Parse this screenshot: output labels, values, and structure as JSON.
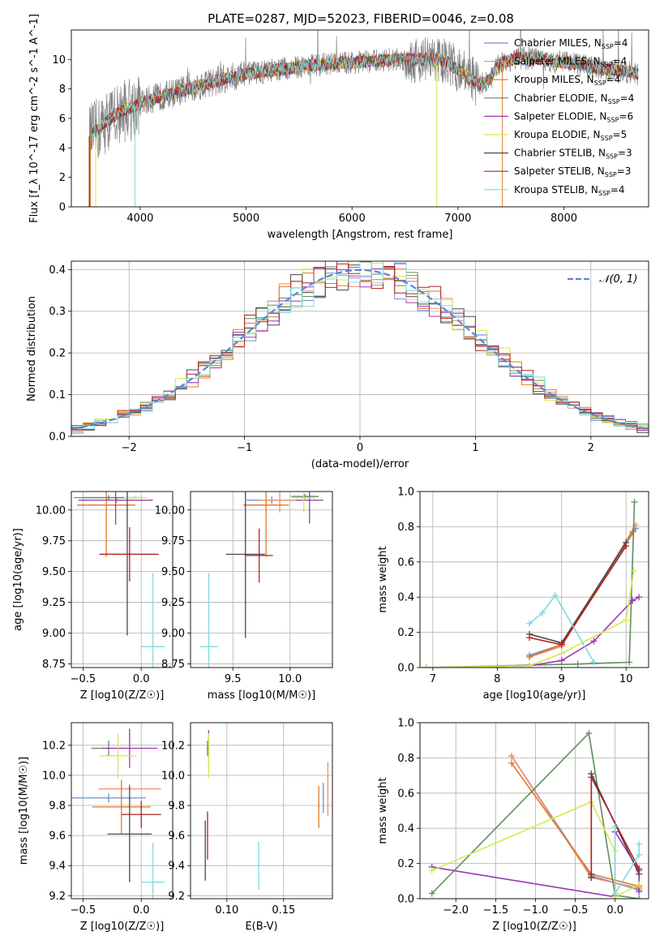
{
  "figure_title": "PLATE=0287, MJD=52023, FIBERID=0046, z=0.08",
  "colors": {
    "grid": "#b0b0b0",
    "gauss": "#5b86d6",
    "series": [
      "#6b8fd6",
      "#f28e6e",
      "#e0791f",
      "#5e8d5e",
      "#9e36b5",
      "#d6e84e",
      "#4a4a4a",
      "#b51f1f",
      "#7fd9dc"
    ]
  },
  "series_names": [
    "Chabrier MILES, N_SSP=4",
    "Salpeter MILES, N_SSP=4",
    "Kroupa MILES, N_SSP=4",
    "Chabrier ELODIE, N_SSP=4",
    "Salpeter ELODIE, N_SSP=6",
    "Kroupa ELODIE, N_SSP=5",
    "Chabrier STELIB, N_SSP=3",
    "Salpeter STELIB, N_SSP=3",
    "Kroupa STELIB, N_SSP=4"
  ],
  "chart_data": [
    {
      "id": "spectrum",
      "type": "line",
      "title": "PLATE=0287, MJD=52023, FIBERID=0046, z=0.08",
      "xlabel": "wavelength [Angstrom, rest frame]",
      "ylabel": "Flux [f_λ 10^-17 erg cm^-2 s^-1 A^-1]",
      "xlim": [
        3350,
        8800
      ],
      "ylim": [
        0,
        12
      ],
      "xticks": [
        4000,
        5000,
        6000,
        7000,
        8000
      ],
      "yticks": [
        0,
        2,
        4,
        6,
        8,
        10
      ],
      "grid": false,
      "legend_placement": "right",
      "continuum": {
        "x": [
          3520,
          3600,
          3700,
          3800,
          3900,
          4000,
          4100,
          4200,
          4400,
          4600,
          4800,
          5000,
          5200,
          5400,
          5600,
          5800,
          6000,
          6200,
          6400,
          6600,
          6800,
          6900,
          7000,
          7100,
          7200,
          7300,
          7400,
          7600,
          7800,
          8000,
          8200,
          8400,
          8600,
          8700
        ],
        "y": [
          4.8,
          5.2,
          5.9,
          6.4,
          6.7,
          7.0,
          7.3,
          7.5,
          7.9,
          8.3,
          8.7,
          9.0,
          9.2,
          9.4,
          9.6,
          9.7,
          9.8,
          9.9,
          10.0,
          10.0,
          10.0,
          9.8,
          9.3,
          8.8,
          8.3,
          8.6,
          9.8,
          10.1,
          10.0,
          9.8,
          9.6,
          9.3,
          9.2,
          9.0
        ]
      }
    },
    {
      "id": "residuals",
      "type": "line",
      "xlabel": "(data-model)/error",
      "ylabel": "Normed distribution",
      "xlim": [
        -2.5,
        2.5
      ],
      "ylim": [
        0,
        0.42
      ],
      "xticks": [
        -2,
        -1,
        0,
        1,
        2
      ],
      "yticks": [
        0.0,
        0.1,
        0.2,
        0.3,
        0.4
      ],
      "grid": true,
      "legend_entry": "𝒩(0, 1)",
      "legend_placement": "top-right",
      "bin_width": 0.1,
      "bin_start": -2.5
    },
    {
      "id": "age_vs_Z",
      "type": "scatter",
      "xlabel": "Z [log10(Z/Z☉)]",
      "ylabel": "age [log10(age/yr)]",
      "xlim": [
        -0.6,
        0.27
      ],
      "ylim": [
        8.72,
        10.15
      ],
      "xticks": [
        -0.5,
        0.0
      ],
      "yticks": [
        8.75,
        9.0,
        9.25,
        9.5,
        9.75,
        10.0
      ],
      "grid": true,
      "points": [
        {
          "x": -0.28,
          "y": 10.1,
          "xerr": 0.3,
          "yerr": 0.02
        },
        {
          "x": -0.21,
          "y": 10.08,
          "xerr": 0.3,
          "yerr": 0.02
        },
        {
          "x": -0.3,
          "y": 10.04,
          "xerr": 0.25,
          "yerr": 0.42
        },
        {
          "x": -0.28,
          "y": 10.1,
          "xerr": 0.22,
          "yerr": 0.02
        },
        {
          "x": -0.22,
          "y": 10.08,
          "xerr": 0.32,
          "yerr": 0.2
        },
        {
          "x": -0.05,
          "y": 10.1,
          "xerr": 0.1,
          "yerr": 0.02
        },
        {
          "x": -0.12,
          "y": 9.64,
          "xerr": 0.24,
          "yerr": 0.66
        },
        {
          "x": -0.1,
          "y": 9.64,
          "xerr": 0.25,
          "yerr": 0.22
        },
        {
          "x": 0.1,
          "y": 8.89,
          "xerr": 0.1,
          "yerr": 0.6
        }
      ]
    },
    {
      "id": "age_vs_mass",
      "type": "scatter",
      "xlabel": "mass [log10(M/M☉)]",
      "ylabel": "",
      "xlim": [
        9.13,
        10.37
      ],
      "ylim": [
        8.72,
        10.15
      ],
      "xticks": [
        9.5,
        10.0
      ],
      "yticks": [
        8.75,
        9.0,
        9.25,
        9.5,
        9.75,
        10.0
      ],
      "grid": true,
      "points": [
        {
          "x": 9.84,
          "y": 10.08,
          "xerr": 0.22,
          "yerr": 0.03
        },
        {
          "x": 9.91,
          "y": 10.08,
          "xerr": 0.18,
          "yerr": 0.1
        },
        {
          "x": 9.79,
          "y": 10.04,
          "xerr": 0.2,
          "yerr": 0.42
        },
        {
          "x": 10.13,
          "y": 10.11,
          "xerr": 0.12,
          "yerr": 0.02
        },
        {
          "x": 10.17,
          "y": 10.08,
          "xerr": 0.12,
          "yerr": 0.19
        },
        {
          "x": 10.12,
          "y": 10.1,
          "xerr": 0.1,
          "yerr": 0.12
        },
        {
          "x": 9.61,
          "y": 9.64,
          "xerr": 0.17,
          "yerr": 0.68
        },
        {
          "x": 9.73,
          "y": 9.63,
          "xerr": 0.12,
          "yerr": 0.22
        },
        {
          "x": 9.29,
          "y": 8.89,
          "xerr": 0.08,
          "yerr": 0.6
        }
      ]
    },
    {
      "id": "weight_vs_age",
      "type": "line",
      "xlabel": "age [log10(age/yr)]",
      "ylabel": "mass weight",
      "xlim": [
        6.8,
        10.35
      ],
      "ylim": [
        0,
        1.0
      ],
      "xticks": [
        7,
        8,
        9,
        10
      ],
      "yticks": [
        0.0,
        0.2,
        0.4,
        0.6,
        0.8,
        1.0
      ],
      "grid": true,
      "series": [
        {
          "x": [
            8.5,
            9.0,
            10.15
          ],
          "y": [
            0.07,
            0.13,
            0.79
          ]
        },
        {
          "x": [
            8.5,
            9.0,
            10.15
          ],
          "y": [
            0.06,
            0.12,
            0.81
          ]
        },
        {
          "x": [
            8.5,
            9.0,
            10.1
          ],
          "y": [
            0.06,
            0.13,
            0.77
          ]
        },
        {
          "x": [
            6.9,
            9.25,
            10.05,
            10.13
          ],
          "y": [
            0.0,
            0.02,
            0.03,
            0.94
          ]
        },
        {
          "x": [
            6.9,
            8.5,
            9.0,
            9.5,
            10.1,
            10.2
          ],
          "y": [
            0.0,
            0.01,
            0.04,
            0.15,
            0.38,
            0.4
          ]
        },
        {
          "x": [
            6.9,
            8.5,
            9.0,
            10.0,
            10.12
          ],
          "y": [
            0.0,
            0.01,
            0.08,
            0.27,
            0.55
          ]
        },
        {
          "x": [
            8.5,
            9.0,
            10.0
          ],
          "y": [
            0.19,
            0.14,
            0.71
          ]
        },
        {
          "x": [
            8.5,
            9.0,
            10.0
          ],
          "y": [
            0.17,
            0.13,
            0.69
          ]
        },
        {
          "x": [
            8.5,
            8.7,
            8.9,
            9.5
          ],
          "y": [
            0.25,
            0.31,
            0.41,
            0.03
          ]
        }
      ]
    },
    {
      "id": "mass_vs_Z",
      "type": "scatter",
      "xlabel": "Z [log10(Z/Z☉)]",
      "ylabel": "mass [log10(M/M☉)]",
      "xlim": [
        -0.6,
        0.27
      ],
      "ylim": [
        9.18,
        10.35
      ],
      "xticks": [
        -0.5,
        0.0
      ],
      "yticks": [
        9.2,
        9.4,
        9.6,
        9.8,
        10.0,
        10.2
      ],
      "grid": true,
      "points": [
        {
          "x": -0.28,
          "y": 9.85,
          "xerr": 0.32,
          "yerr": 0.03
        },
        {
          "x": -0.1,
          "y": 9.91,
          "xerr": 0.27,
          "yerr": 0.03
        },
        {
          "x": -0.17,
          "y": 9.79,
          "xerr": 0.25,
          "yerr": 0.18
        },
        {
          "x": -0.28,
          "y": 10.18,
          "xerr": 0.15,
          "yerr": 0.05
        },
        {
          "x": -0.1,
          "y": 10.18,
          "xerr": 0.24,
          "yerr": 0.13
        },
        {
          "x": -0.2,
          "y": 10.13,
          "xerr": 0.16,
          "yerr": 0.15
        },
        {
          "x": -0.1,
          "y": 9.61,
          "xerr": 0.19,
          "yerr": 0.32
        },
        {
          "x": 0.0,
          "y": 9.74,
          "xerr": 0.17,
          "yerr": 0.09
        },
        {
          "x": 0.1,
          "y": 9.29,
          "xerr": 0.1,
          "yerr": 0.26
        }
      ]
    },
    {
      "id": "mass_vs_EBV",
      "type": "scatter",
      "xlabel": "E(B-V)",
      "ylabel": "",
      "xlim": [
        0.068,
        0.193
      ],
      "ylim": [
        9.18,
        10.35
      ],
      "xticks": [
        0.1,
        0.15
      ],
      "yticks": [
        9.2,
        9.4,
        9.6,
        9.8,
        10.0,
        10.2
      ],
      "grid": true,
      "points": [
        {
          "x": 0.185,
          "y": 9.85,
          "xerr": 0.0005,
          "yerr": 0.1
        },
        {
          "x": 0.189,
          "y": 9.91,
          "xerr": 0.0005,
          "yerr": 0.18
        },
        {
          "x": 0.181,
          "y": 9.79,
          "xerr": 0.0005,
          "yerr": 0.14
        },
        {
          "x": 0.083,
          "y": 10.18,
          "xerr": 0.0005,
          "yerr": 0.05
        },
        {
          "x": 0.084,
          "y": 10.18,
          "xerr": 0.0005,
          "yerr": 0.12
        },
        {
          "x": 0.084,
          "y": 10.13,
          "xerr": 0.0005,
          "yerr": 0.15
        },
        {
          "x": 0.081,
          "y": 9.5,
          "xerr": 0.0005,
          "yerr": 0.2
        },
        {
          "x": 0.083,
          "y": 9.6,
          "xerr": 0.0005,
          "yerr": 0.16
        },
        {
          "x": 0.128,
          "y": 9.4,
          "xerr": 0.0005,
          "yerr": 0.16
        }
      ]
    },
    {
      "id": "weight_vs_Z",
      "type": "line",
      "xlabel": "Z [log10(Z/Z☉)]",
      "ylabel": "mass weight",
      "xlim": [
        -2.45,
        0.42
      ],
      "ylim": [
        0,
        1.0
      ],
      "xticks": [
        -2.0,
        -1.5,
        -1.0,
        -0.5,
        0.0
      ],
      "yticks": [
        0.0,
        0.2,
        0.4,
        0.6,
        0.8,
        1.0
      ],
      "grid": true,
      "series": [
        {
          "x": [
            -1.3,
            -0.3,
            0.3
          ],
          "y": [
            0.81,
            0.13,
            0.05
          ]
        },
        {
          "x": [
            -1.3,
            -0.3,
            0.3
          ],
          "y": [
            0.81,
            0.12,
            0.06
          ]
        },
        {
          "x": [
            -1.3,
            -0.3,
            0.3
          ],
          "y": [
            0.77,
            0.14,
            0.07
          ]
        },
        {
          "x": [
            -2.3,
            -0.33,
            0.0,
            0.3
          ],
          "y": [
            0.03,
            0.94,
            0.02,
            0.0
          ]
        },
        {
          "x": [
            -2.3,
            0.0,
            0.0,
            0.3,
            0.3
          ],
          "y": [
            0.18,
            0.01,
            0.38,
            0.16,
            0.04
          ]
        },
        {
          "x": [
            -2.3,
            -0.3,
            0.0,
            0.0,
            0.3
          ],
          "y": [
            0.16,
            0.55,
            0.27,
            0.01,
            0.08
          ]
        },
        {
          "x": [
            -0.3,
            -0.3,
            0.3
          ],
          "y": [
            0.12,
            0.71,
            0.14
          ]
        },
        {
          "x": [
            -0.3,
            -0.3,
            0.3
          ],
          "y": [
            0.14,
            0.69,
            0.17
          ]
        },
        {
          "x": [
            0.0,
            0.0,
            0.3,
            0.3
          ],
          "y": [
            0.41,
            0.03,
            0.25,
            0.31
          ]
        }
      ]
    }
  ]
}
